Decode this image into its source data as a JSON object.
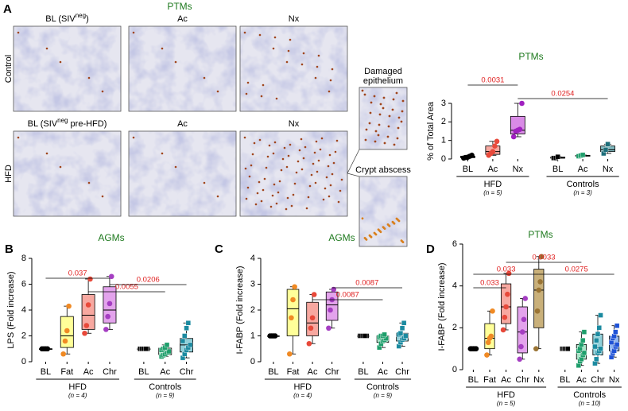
{
  "micrographs": {
    "panel": "A",
    "title": "PTMs",
    "row_labels": [
      "Control",
      "HFD"
    ],
    "rows": [
      [
        {
          "text": "BL (SIV",
          "sup": "neg",
          "after": ")"
        },
        {
          "text": "Ac"
        },
        {
          "text": "Nx"
        }
      ],
      [
        {
          "text": "BL (SIV",
          "sup": "neg",
          "after": " pre-HFD)"
        },
        {
          "text": "Ac"
        },
        {
          "text": "Nx"
        }
      ]
    ],
    "insets": [
      [
        "Damaged",
        "epithelium"
      ],
      [
        "Crypt abscess"
      ]
    ]
  },
  "chart_data": [
    {
      "type": "box",
      "title": "PTMs",
      "ylabel": "% of Total Area",
      "ylim": [
        0,
        3
      ],
      "yticks": [
        0,
        1,
        2,
        3
      ],
      "groups": [
        {
          "label": "HFD",
          "n_label": "(n = 5)",
          "marker": "circle",
          "categories": [
            "BL",
            "Ac",
            "Nx"
          ],
          "boxes": [
            {
              "fill": "#000000",
              "point_color": "#000000",
              "min": 0.05,
              "q1": 0.07,
              "median": 0.1,
              "q3": 0.15,
              "max": 0.2,
              "points": [
                0.05,
                0.08,
                0.1,
                0.15,
                0.2
              ]
            },
            {
              "fill": "#f7a8a0",
              "point_color": "#e8493a",
              "min": 0.2,
              "q1": 0.25,
              "median": 0.4,
              "q3": 0.7,
              "max": 0.95,
              "points": [
                0.2,
                0.3,
                0.4,
                0.7,
                0.95
              ]
            },
            {
              "fill": "#d98be6",
              "point_color": "#a020c0",
              "min": 1.2,
              "q1": 1.35,
              "median": 1.55,
              "q3": 2.3,
              "max": 3.0,
              "points": [
                1.2,
                1.5,
                1.55,
                1.6,
                3.0
              ]
            }
          ]
        },
        {
          "label": "Controls",
          "n_label": "(n = 3)",
          "marker": "square",
          "categories": [
            "BL",
            "Ac",
            "Nx"
          ],
          "boxes": [
            {
              "fill": "#000000",
              "point_color": "#000000",
              "min": 0.05,
              "q1": 0.05,
              "median": 0.05,
              "q3": 0.1,
              "max": 0.12,
              "points": [
                0.05,
                0.05,
                0.12
              ]
            },
            {
              "fill": "#a8e6c8",
              "point_color": "#1e9e6b",
              "min": 0.15,
              "q1": 0.15,
              "median": 0.18,
              "q3": 0.2,
              "max": 0.22,
              "points": [
                0.15,
                0.18,
                0.22
              ]
            },
            {
              "fill": "#7fb8be",
              "point_color": "#1d6e7a",
              "min": 0.3,
              "q1": 0.4,
              "median": 0.5,
              "q3": 0.7,
              "max": 0.8,
              "points": [
                0.3,
                0.5,
                0.8
              ]
            }
          ]
        }
      ],
      "comparisons": [
        {
          "label": "0.0031",
          "from": [
            0,
            0
          ],
          "to": [
            0,
            2
          ]
        },
        {
          "label": "0.0254",
          "from": [
            0,
            2
          ],
          "to": [
            1,
            2
          ]
        }
      ]
    },
    {
      "type": "box",
      "panel": "B",
      "title": "AGMs",
      "ylabel": "LPS (Fold increase)",
      "ylim": [
        0,
        8
      ],
      "yticks": [
        0,
        2,
        4,
        6,
        8
      ],
      "groups": [
        {
          "label": "HFD",
          "n_label": "(n = 4)",
          "marker": "circle",
          "categories": [
            "BL",
            "Fat",
            "Ac",
            "Chr"
          ],
          "boxes": [
            {
              "fill": "#000000",
              "point_color": "#000000",
              "min": 1,
              "q1": 1,
              "median": 1,
              "q3": 1,
              "max": 1,
              "points": [
                1,
                1,
                1,
                1
              ]
            },
            {
              "fill": "#ffff99",
              "point_color": "#f08a24",
              "min": 0.6,
              "q1": 1.1,
              "median": 2,
              "q3": 3.5,
              "max": 4.3,
              "points": [
                0.6,
                1.6,
                2.4,
                4.3
              ]
            },
            {
              "fill": "#f7a8a0",
              "point_color": "#e8493a",
              "min": 2.2,
              "q1": 2.5,
              "median": 3.6,
              "q3": 5.2,
              "max": 6.4,
              "points": [
                2.2,
                2.8,
                4.4,
                6.4
              ]
            },
            {
              "fill": "#e3a3ec",
              "point_color": "#a53ec2",
              "min": 2.5,
              "q1": 3,
              "median": 4,
              "q3": 5.8,
              "max": 6.6,
              "points": [
                2.5,
                3.5,
                4.5,
                6.6
              ]
            }
          ]
        },
        {
          "label": "Controls",
          "n_label": "(n = 9)",
          "marker": "square",
          "categories": [
            "BL",
            "Ac",
            "Chr"
          ],
          "boxes": [
            {
              "fill": "#000000",
              "point_color": "#000000",
              "min": 1,
              "q1": 1,
              "median": 1,
              "q3": 1,
              "max": 1,
              "points": [
                1,
                1,
                1,
                1,
                1,
                1,
                1,
                1,
                1
              ]
            },
            {
              "fill": "#a8e6c8",
              "point_color": "#1e9e6b",
              "min": 0.4,
              "q1": 0.55,
              "median": 0.8,
              "q3": 1.05,
              "max": 1.3,
              "points": [
                0.4,
                0.5,
                0.6,
                0.7,
                0.8,
                0.9,
                1.0,
                1.1,
                1.3
              ]
            },
            {
              "fill": "#8fd0da",
              "point_color": "#1b8aa0",
              "min": 0.3,
              "q1": 0.75,
              "median": 1.3,
              "q3": 1.8,
              "max": 3.0,
              "points": [
                0.3,
                0.6,
                0.9,
                1.1,
                1.3,
                1.6,
                2.0,
                2.6,
                3.0
              ]
            }
          ]
        }
      ],
      "comparisons": [
        {
          "label": "0.037",
          "from": [
            0,
            0
          ],
          "to": [
            0,
            3
          ]
        },
        {
          "label": "0.0055",
          "from": [
            0,
            2
          ],
          "to": [
            1,
            1
          ]
        },
        {
          "label": "0.0206",
          "from": [
            0,
            3
          ],
          "to": [
            1,
            2
          ]
        }
      ]
    },
    {
      "type": "box",
      "panel": "C",
      "title": "AGMs",
      "ylabel": "I-FABP (Fold increase)",
      "ylim": [
        0,
        4
      ],
      "yticks": [
        0,
        1,
        2,
        3,
        4
      ],
      "groups": [
        {
          "label": "HFD",
          "n_label": "(n = 4)",
          "marker": "circle",
          "categories": [
            "BL",
            "Fat",
            "Ac",
            "Chr"
          ],
          "boxes": [
            {
              "fill": "#000000",
              "point_color": "#000000",
              "min": 1,
              "q1": 1,
              "median": 1,
              "q3": 1,
              "max": 1,
              "points": [
                1,
                1,
                1,
                1
              ]
            },
            {
              "fill": "#ffff99",
              "point_color": "#f08a24",
              "min": 0.3,
              "q1": 1,
              "median": 2.05,
              "q3": 2.8,
              "max": 2.9,
              "points": [
                0.3,
                1.7,
                2.4,
                2.9
              ]
            },
            {
              "fill": "#f7a8a0",
              "point_color": "#e8493a",
              "min": 0.7,
              "q1": 1,
              "median": 1.5,
              "q3": 2.3,
              "max": 2.6,
              "points": [
                0.7,
                1.3,
                1.7,
                2.6
              ]
            },
            {
              "fill": "#e3a3ec",
              "point_color": "#a53ec2",
              "min": 1.3,
              "q1": 1.6,
              "median": 2.2,
              "q3": 2.7,
              "max": 2.8,
              "points": [
                1.3,
                2.0,
                2.4,
                2.8
              ]
            }
          ]
        },
        {
          "label": "Controls",
          "n_label": "(n = 9)",
          "marker": "square",
          "categories": [
            "BL",
            "Ac",
            "Chr"
          ],
          "boxes": [
            {
              "fill": "#000000",
              "point_color": "#000000",
              "min": 1,
              "q1": 1,
              "median": 1,
              "q3": 1,
              "max": 1,
              "points": [
                1,
                1,
                1,
                1,
                1,
                1,
                1,
                1,
                1
              ]
            },
            {
              "fill": "#a8e6c8",
              "point_color": "#1e9e6b",
              "min": 0.55,
              "q1": 0.75,
              "median": 0.9,
              "q3": 1.0,
              "max": 1.05,
              "points": [
                0.55,
                0.7,
                0.8,
                0.85,
                0.9,
                0.95,
                1.0,
                1.0,
                1.05
              ]
            },
            {
              "fill": "#8fd0da",
              "point_color": "#1b8aa0",
              "min": 0.6,
              "q1": 0.8,
              "median": 1,
              "q3": 1.1,
              "max": 1.5,
              "points": [
                0.6,
                0.75,
                0.85,
                0.9,
                1.0,
                1.05,
                1.1,
                1.3,
                1.5
              ]
            }
          ]
        }
      ],
      "comparisons": [
        {
          "label": "0.0087",
          "from": [
            0,
            3
          ],
          "to": [
            1,
            2
          ]
        },
        {
          "label": "0.0087",
          "from": [
            0,
            2
          ],
          "to": [
            1,
            1
          ]
        }
      ]
    },
    {
      "type": "box",
      "panel": "D",
      "title": "PTMs",
      "ylabel": "I-FABP (Fold increase)",
      "ylim": [
        0,
        6
      ],
      "yticks": [
        0,
        2,
        4,
        6
      ],
      "groups": [
        {
          "label": "HFD",
          "n_label": "(n = 5)",
          "marker": "circle",
          "categories": [
            "BL",
            "Fat",
            "Ac",
            "Chr",
            "Nx"
          ],
          "boxes": [
            {
              "fill": "#000000",
              "point_color": "#000000",
              "min": 1,
              "q1": 1,
              "median": 1,
              "q3": 1,
              "max": 1,
              "points": [
                1,
                1,
                1,
                1,
                1
              ]
            },
            {
              "fill": "#ffff99",
              "point_color": "#f08a24",
              "min": 0.7,
              "q1": 1,
              "median": 1.5,
              "q3": 2.2,
              "max": 2.8,
              "points": [
                0.7,
                1.3,
                1.5,
                1.6,
                2.8
              ]
            },
            {
              "fill": "#f7a8a0",
              "point_color": "#e8493a",
              "min": 1.9,
              "q1": 2.2,
              "median": 3,
              "q3": 4.1,
              "max": 4.6,
              "points": [
                1.9,
                2.5,
                3,
                3.6,
                4.6
              ]
            },
            {
              "fill": "#e3a3ec",
              "point_color": "#a53ec2",
              "min": 0.5,
              "q1": 0.8,
              "median": 1.8,
              "q3": 3,
              "max": 3.4,
              "points": [
                0.5,
                1.1,
                1.8,
                2.4,
                3.4
              ]
            },
            {
              "fill": "#c9b07a",
              "point_color": "#9a7434",
              "min": 1,
              "q1": 2,
              "median": 3.8,
              "q3": 4.8,
              "max": 5.4,
              "points": [
                1,
                2.8,
                3.8,
                4.2,
                5.4
              ]
            }
          ]
        },
        {
          "label": "Controls",
          "n_label": "(n = 10)",
          "marker": "square",
          "categories": [
            "BL",
            "Ac",
            "Chr",
            "Nx"
          ],
          "boxes": [
            {
              "fill": "#000000",
              "point_color": "#000000",
              "min": 1,
              "q1": 1,
              "median": 1,
              "q3": 1,
              "max": 1,
              "points": [
                1,
                1,
                1,
                1,
                1,
                1,
                1,
                1,
                1,
                1
              ]
            },
            {
              "fill": "#a8e6c8",
              "point_color": "#1e9e6b",
              "min": 0.2,
              "q1": 0.5,
              "median": 0.85,
              "q3": 1.2,
              "max": 1.8,
              "points": [
                0.2,
                0.4,
                0.5,
                0.7,
                0.8,
                0.9,
                1,
                1.2,
                1.4,
                1.8
              ]
            },
            {
              "fill": "#8fd0da",
              "point_color": "#1b8aa0",
              "min": 0.3,
              "q1": 0.7,
              "median": 1.05,
              "q3": 1.7,
              "max": 2.6,
              "points": [
                0.3,
                0.5,
                0.8,
                0.9,
                1,
                1.1,
                1.4,
                1.7,
                2,
                2.6
              ]
            },
            {
              "fill": "#8fb5f0",
              "point_color": "#1f52d6",
              "min": 0.6,
              "q1": 0.9,
              "median": 1.25,
              "q3": 1.6,
              "max": 2.1,
              "points": [
                0.6,
                0.8,
                0.9,
                1.1,
                1.2,
                1.3,
                1.5,
                1.6,
                1.8,
                2.1
              ]
            }
          ]
        }
      ],
      "comparisons": [
        {
          "label": "0.033",
          "from": [
            0,
            0
          ],
          "to": [
            0,
            2
          ]
        },
        {
          "label": "0.033",
          "from": [
            0,
            0
          ],
          "to": [
            0,
            4
          ]
        },
        {
          "label": "0.0033",
          "from": [
            0,
            2
          ],
          "to": [
            1,
            1
          ]
        },
        {
          "label": "0.0275",
          "from": [
            0,
            4
          ],
          "to": [
            1,
            3
          ]
        }
      ]
    }
  ]
}
